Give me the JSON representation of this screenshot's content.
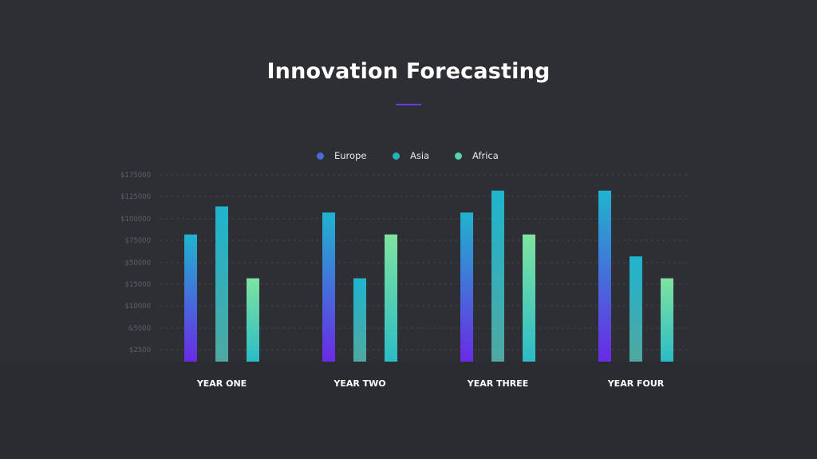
{
  "page": {
    "title": "Innovation Forecasting",
    "accent_color": "#6a3de0"
  },
  "chart_data": {
    "type": "bar",
    "title": "Innovation Forecasting",
    "categories": [
      "YEAR ONE",
      "YEAR TWO",
      "YEAR THREE",
      "YEAR FOUR"
    ],
    "y_tick_labels": [
      "$175000",
      "$125000",
      "$100000",
      "$75000",
      "$50000",
      "$15000",
      "$10000",
      "&5000",
      "$2500"
    ],
    "y_scale_note_values": [
      0,
      25,
      50,
      75,
      100,
      125,
      150,
      175,
      200
    ],
    "series": [
      {
        "name": "Europe",
        "values": [
          145,
          170,
          170,
          195
        ],
        "gradient": [
          "#1fb4cf",
          "#6a2ae6"
        ],
        "legend_color": "#4a6ad8"
      },
      {
        "name": "Asia",
        "values": [
          177,
          95,
          195,
          120
        ],
        "gradient": [
          "#1fb4cf",
          "#4fa8a0"
        ],
        "legend_color": "#25b2b8"
      },
      {
        "name": "Africa",
        "values": [
          95,
          145,
          145,
          95
        ],
        "gradient": [
          "#7fe3a0",
          "#2bbcc6"
        ],
        "legend_color": "#53d4b0"
      }
    ],
    "ylim": [
      0,
      213
    ],
    "grid": true,
    "legend_position": "top-center"
  }
}
